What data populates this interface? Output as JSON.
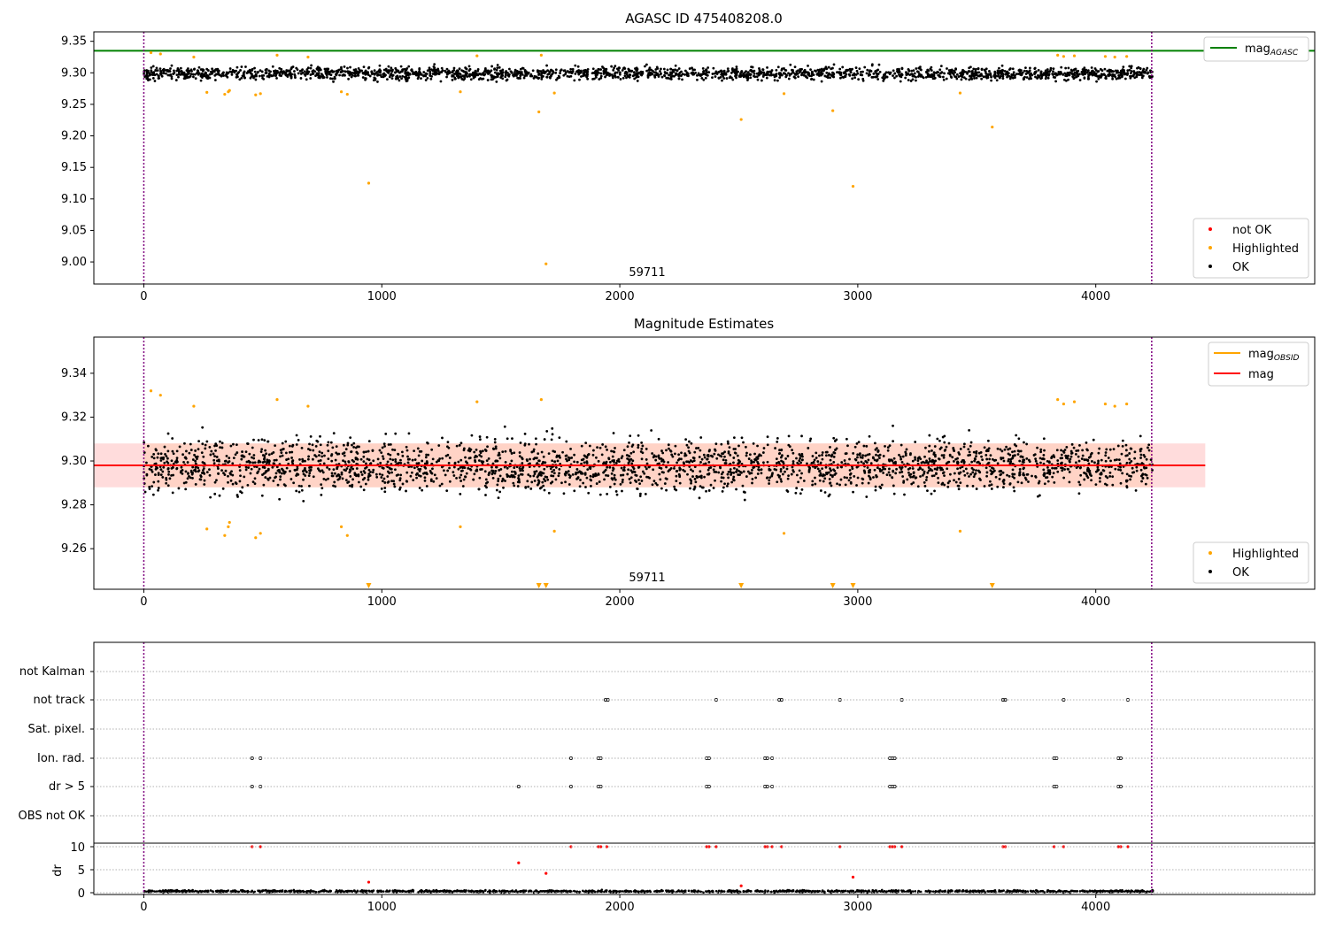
{
  "chart_data": [
    {
      "type": "scatter",
      "title": "AGASC ID 475408208.0",
      "annotation": "59711",
      "xlim": [
        -210,
        4920
      ],
      "ylim": [
        8.965,
        9.365
      ],
      "xticks": [
        "0",
        "1000",
        "2000",
        "3000",
        "4000"
      ],
      "xtick_values": [
        0,
        1000,
        2000,
        3000,
        4000
      ],
      "yticks": [
        "9.00",
        "9.05",
        "9.10",
        "9.15",
        "9.20",
        "9.25",
        "9.30",
        "9.35"
      ],
      "ytick_values": [
        9.0,
        9.05,
        9.1,
        9.15,
        9.2,
        9.25,
        9.3,
        9.35
      ],
      "obs_start": 0,
      "obs_end": 4235,
      "mag_agasc": 9.335,
      "ok_band": {
        "x_range": [
          0,
          4240
        ],
        "center": 9.299,
        "spread": 0.008,
        "n_points": 2200,
        "color": "#000000"
      },
      "highlighted": [
        [
          30,
          9.332
        ],
        [
          70,
          9.33
        ],
        [
          210,
          9.325
        ],
        [
          265,
          9.269
        ],
        [
          340,
          9.266
        ],
        [
          355,
          9.27
        ],
        [
          360,
          9.272
        ],
        [
          470,
          9.265
        ],
        [
          490,
          9.267
        ],
        [
          560,
          9.328
        ],
        [
          690,
          9.325
        ],
        [
          830,
          9.27
        ],
        [
          855,
          9.266
        ],
        [
          945,
          9.125
        ],
        [
          1330,
          9.27
        ],
        [
          1400,
          9.327
        ],
        [
          1660,
          9.238
        ],
        [
          1670,
          9.328
        ],
        [
          1690,
          8.997
        ],
        [
          1725,
          9.268
        ],
        [
          2510,
          9.226
        ],
        [
          2690,
          9.267
        ],
        [
          2895,
          9.24
        ],
        [
          2980,
          9.12
        ],
        [
          3430,
          9.268
        ],
        [
          3565,
          9.214
        ],
        [
          3840,
          9.328
        ],
        [
          3865,
          9.326
        ],
        [
          3910,
          9.327
        ],
        [
          4040,
          9.326
        ],
        [
          4080,
          9.325
        ],
        [
          4130,
          9.326
        ]
      ],
      "legend": [
        {
          "label": "not OK",
          "marker": "dot",
          "color": "#ff0000"
        },
        {
          "label": "Highlighted",
          "marker": "dot",
          "color": "#ffa500"
        },
        {
          "label": "OK",
          "marker": "dot",
          "color": "#000000"
        }
      ],
      "legend_line": {
        "label": "mag",
        "subscript": "AGASC",
        "color": "#008000"
      },
      "legend_placement": [
        "top-right",
        "lower-right"
      ]
    },
    {
      "type": "scatter",
      "title": "Magnitude Estimates",
      "annotation": "59711",
      "xlim": [
        -210,
        4920
      ],
      "ylim": [
        9.2415,
        9.3565
      ],
      "xticks": [
        "0",
        "1000",
        "2000",
        "3000",
        "4000"
      ],
      "xtick_values": [
        0,
        1000,
        2000,
        3000,
        4000
      ],
      "yticks": [
        "9.26",
        "9.28",
        "9.30",
        "9.32",
        "9.34"
      ],
      "ytick_values": [
        9.26,
        9.28,
        9.3,
        9.32,
        9.34
      ],
      "mag": 9.298,
      "mag_band": [
        9.288,
        9.308
      ],
      "mag_line_xrange": [
        -210,
        4460
      ],
      "ok_band": {
        "x_range": [
          0,
          4240
        ],
        "center": 9.298,
        "spread": 0.0085,
        "n_points": 2600,
        "color": "#000000"
      },
      "highlighted": [
        [
          30,
          9.332
        ],
        [
          70,
          9.33
        ],
        [
          210,
          9.325
        ],
        [
          265,
          9.269
        ],
        [
          340,
          9.266
        ],
        [
          355,
          9.27
        ],
        [
          360,
          9.272
        ],
        [
          470,
          9.265
        ],
        [
          490,
          9.267
        ],
        [
          560,
          9.328
        ],
        [
          690,
          9.325
        ],
        [
          830,
          9.27
        ],
        [
          855,
          9.266
        ],
        [
          1330,
          9.27
        ],
        [
          1400,
          9.327
        ],
        [
          1670,
          9.328
        ],
        [
          1725,
          9.268
        ],
        [
          2690,
          9.267
        ],
        [
          3430,
          9.268
        ],
        [
          3840,
          9.328
        ],
        [
          3865,
          9.326
        ],
        [
          3910,
          9.327
        ],
        [
          4040,
          9.326
        ],
        [
          4080,
          9.325
        ],
        [
          4130,
          9.326
        ]
      ],
      "out_of_range_markers": [
        945,
        1660,
        1690,
        2510,
        2895,
        2980,
        3565
      ],
      "legend": [
        {
          "label": "Highlighted",
          "marker": "dot",
          "color": "#ffa500"
        },
        {
          "label": "OK",
          "marker": "dot",
          "color": "#000000"
        }
      ],
      "legend_lines": [
        {
          "label": "mag",
          "subscript": "OBSID",
          "color": "#ffa500"
        },
        {
          "label": "mag",
          "subscript": "",
          "color": "#ff0000"
        }
      ],
      "legend_placement": [
        "top-right",
        "lower-right"
      ]
    },
    {
      "type": "scatter",
      "title": "",
      "xlim": [
        -210,
        4920
      ],
      "xticks": [
        "0",
        "1000",
        "2000",
        "3000",
        "4000"
      ],
      "xtick_values": [
        0,
        1000,
        2000,
        3000,
        4000
      ],
      "flag_rows": [
        {
          "label": "not Kalman",
          "x": []
        },
        {
          "label": "not track",
          "x": [
            1940,
            1950,
            2405,
            2670,
            2680,
            2925,
            3185,
            3610,
            3620,
            3865,
            4135
          ]
        },
        {
          "label": "Sat. pixel.",
          "x": []
        },
        {
          "label": "Ion. rad.",
          "x": [
            455,
            490,
            1795,
            1910,
            1920,
            2365,
            2375,
            2610,
            2620,
            2640,
            3135,
            3145,
            3155,
            3825,
            3835,
            4095,
            4105
          ]
        },
        {
          "label": "dr > 5",
          "x": [
            455,
            490,
            1575,
            1795,
            1910,
            1920,
            2365,
            2375,
            2610,
            2620,
            2640,
            3135,
            3145,
            3155,
            3825,
            3835,
            4095,
            4105
          ]
        },
        {
          "label": "OBS not OK",
          "x": []
        }
      ],
      "dr": {
        "ylabel": "dr",
        "yticks": [
          "0",
          "5",
          "10"
        ],
        "ytick_values": [
          0,
          5,
          10
        ],
        "ylim": [
          -0.5,
          10.5
        ],
        "baseline": {
          "x_range": [
            0,
            4240
          ],
          "center": 0.3,
          "spread": 0.18,
          "n_points": 1500
        },
        "outliers": [
          [
            455,
            10
          ],
          [
            490,
            10
          ],
          [
            1575,
            6.5
          ],
          [
            1690,
            4.2
          ],
          [
            945,
            2.3
          ],
          [
            1795,
            10
          ],
          [
            1910,
            10
          ],
          [
            1920,
            10
          ],
          [
            1945,
            10
          ],
          [
            2365,
            10
          ],
          [
            2375,
            10
          ],
          [
            2405,
            10
          ],
          [
            2510,
            1.5
          ],
          [
            2610,
            10
          ],
          [
            2620,
            10
          ],
          [
            2640,
            10
          ],
          [
            2680,
            10
          ],
          [
            2925,
            10
          ],
          [
            2980,
            3.4
          ],
          [
            3135,
            10
          ],
          [
            3145,
            10
          ],
          [
            3155,
            10
          ],
          [
            3185,
            10
          ],
          [
            3610,
            10
          ],
          [
            3620,
            10
          ],
          [
            3825,
            10
          ],
          [
            3865,
            10
          ],
          [
            4095,
            10
          ],
          [
            4105,
            10
          ],
          [
            4135,
            10
          ]
        ]
      }
    }
  ]
}
